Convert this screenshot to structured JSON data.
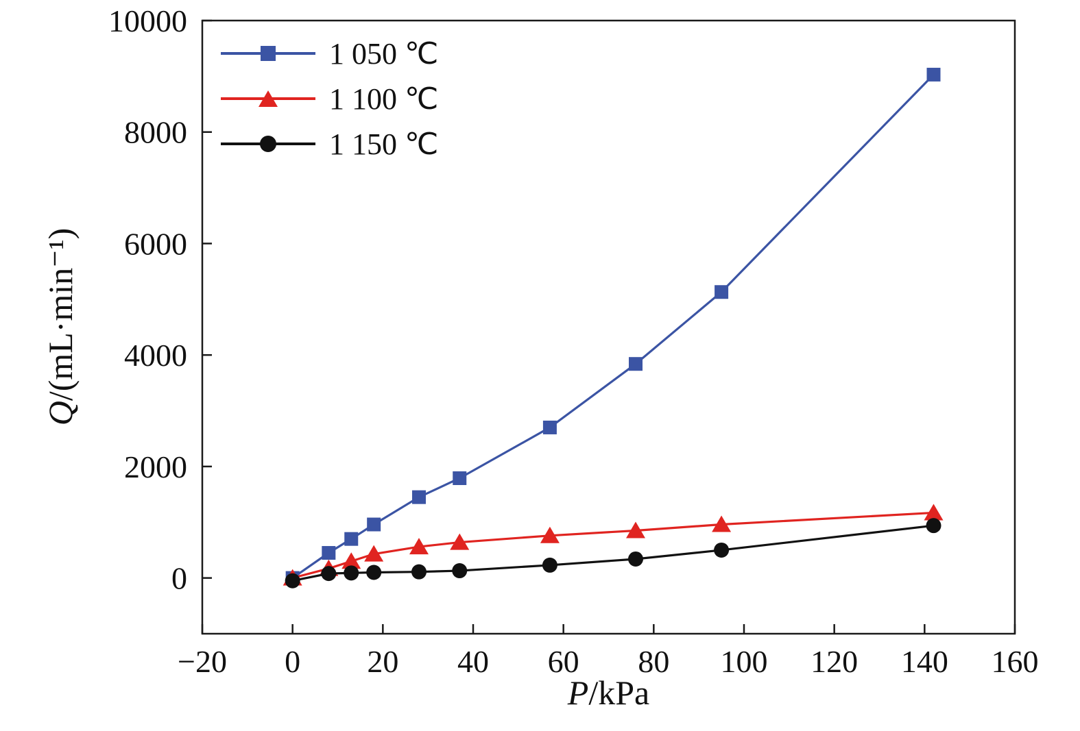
{
  "chart_data": {
    "type": "line",
    "title": "",
    "xlabel_italic": "P",
    "xlabel_rest": "/kPa",
    "ylabel_italic": "Q",
    "ylabel_rest": "/(mL·min⁻¹)",
    "xlim": [
      -20,
      160
    ],
    "ylim": [
      -1000,
      10000
    ],
    "xticks": [
      -20,
      0,
      20,
      40,
      60,
      80,
      100,
      120,
      140,
      160
    ],
    "xtick_labels": [
      "−20",
      "0",
      "20",
      "40",
      "60",
      "80",
      "100",
      "120",
      "140",
      "160"
    ],
    "yticks": [
      0,
      2000,
      4000,
      6000,
      8000,
      10000
    ],
    "ytick_labels": [
      "0",
      "2000",
      "4000",
      "6000",
      "8000",
      "10000"
    ],
    "grid": false,
    "legend_position": "top-left-inside",
    "axis_color": "#1a1a1a",
    "series": [
      {
        "name": "1 050 ℃",
        "color": "#3b54a4",
        "marker": "square",
        "x": [
          0,
          8,
          13,
          18,
          28,
          37,
          57,
          76,
          95,
          142
        ],
        "y": [
          0,
          450,
          700,
          960,
          1450,
          1790,
          2700,
          3840,
          5130,
          9030
        ]
      },
      {
        "name": "1 100 ℃",
        "color": "#e02420",
        "marker": "triangle",
        "x": [
          0,
          8,
          13,
          18,
          28,
          37,
          57,
          76,
          95,
          142
        ],
        "y": [
          0,
          170,
          300,
          430,
          560,
          640,
          760,
          850,
          960,
          1170
        ]
      },
      {
        "name": "1 150 ℃",
        "color": "#111111",
        "marker": "circle",
        "x": [
          0,
          8,
          13,
          18,
          28,
          37,
          57,
          76,
          95,
          142
        ],
        "y": [
          -50,
          80,
          90,
          100,
          110,
          130,
          230,
          340,
          500,
          940
        ]
      }
    ]
  }
}
